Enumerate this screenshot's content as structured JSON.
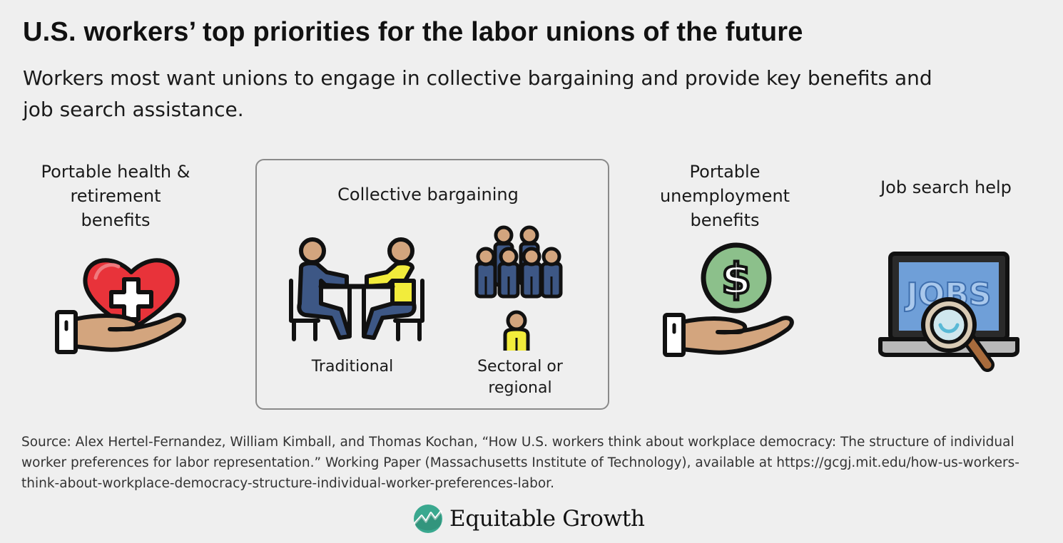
{
  "header": {
    "title": "U.S. workers’ top priorities for the labor unions of the future",
    "subtitle": "Workers most want unions to engage in collective bargaining and provide key benefits and job search assistance."
  },
  "items": {
    "health": {
      "label": "Portable health & retirement benefits",
      "icon": "heart-hand-icon"
    },
    "collective": {
      "label": "Collective bargaining",
      "traditional": {
        "label": "Traditional",
        "icon": "meeting-table-icon"
      },
      "sectoral": {
        "label": "Sectoral or regional",
        "icon": "group-representative-icon"
      }
    },
    "unemployment": {
      "label": "Portable unemployment benefits",
      "icon": "dollar-hand-icon"
    },
    "jobsearch": {
      "label": "Job search help",
      "icon": "laptop-magnifier-icon",
      "screen_text": "JOBS"
    }
  },
  "source": "Source: Alex Hertel-Fernandez, William Kimball, and Thomas Kochan, “How U.S. workers think about workplace democracy: The structure of individual worker preferences for labor representation.” Working Paper (Massachusetts Institute of Technology), available at https://gcgj.mit.edu/how-us-workers-think-about-workplace-democracy-structure-individual-worker-preferences-labor.",
  "brand": {
    "name": "Equitable Growth"
  },
  "colors": {
    "background": "#efefef",
    "heart": "#e8333a",
    "skin": "#d3a57e",
    "navy": "#3d5785",
    "yellow": "#f2ec3b",
    "dollar_green": "#8cc08b",
    "screen_blue": "#6f9fd8",
    "laptop_gray": "#b9b9b9",
    "magnifier_brown": "#a86b3c",
    "brand_teal": "#3aa88f"
  }
}
